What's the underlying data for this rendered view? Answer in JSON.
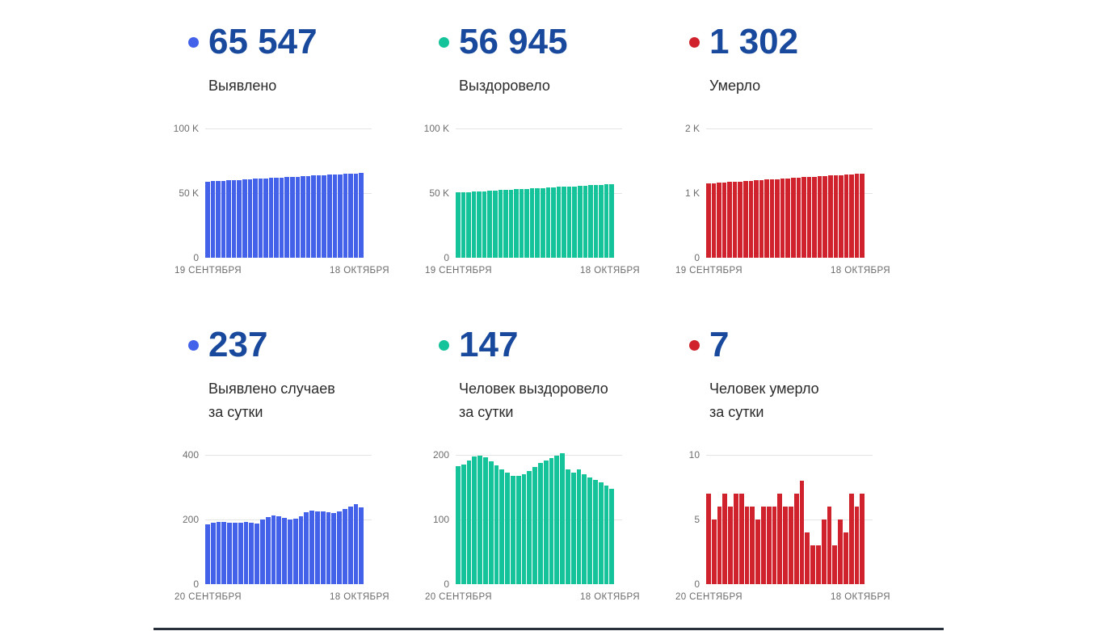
{
  "panels": [
    {
      "value": "65 547",
      "label_lines": [
        "Выявлено"
      ],
      "accent": "#4361e9"
    },
    {
      "value": "56 945",
      "label_lines": [
        "Выздоровело"
      ],
      "accent": "#15c39a"
    },
    {
      "value": "1 302",
      "label_lines": [
        "Умерло"
      ],
      "accent": "#d0222d"
    },
    {
      "value": "237",
      "label_lines": [
        "Выявлено случаев",
        "за сутки"
      ],
      "accent": "#4361e9"
    },
    {
      "value": "147",
      "label_lines": [
        "Человек выздоровело",
        "за сутки"
      ],
      "accent": "#15c39a"
    },
    {
      "value": "7",
      "label_lines": [
        "Человек умерло",
        "за сутки"
      ],
      "accent": "#d0222d"
    }
  ],
  "chart_data": [
    {
      "type": "bar",
      "title": "Выявлено",
      "color": "#4361e9",
      "ylabel": "",
      "xlabel": "",
      "ylim": [
        0,
        100
      ],
      "grid": true,
      "unit": "K",
      "yticks": [
        {
          "label": "100 K",
          "value": 100
        },
        {
          "label": "50 K",
          "value": 50
        },
        {
          "label": "0",
          "value": 0
        }
      ],
      "xticks": [
        "19 СЕНТЯБРЯ",
        "18 ОКТЯБРЯ"
      ],
      "values": [
        58.9,
        59.1,
        59.4,
        59.6,
        59.8,
        60.0,
        60.3,
        60.5,
        60.7,
        61.0,
        61.2,
        61.4,
        61.6,
        61.9,
        62.1,
        62.3,
        62.5,
        62.8,
        63.0,
        63.2,
        63.5,
        63.7,
        63.9,
        64.1,
        64.4,
        64.6,
        64.8,
        65.0,
        65.3,
        65.5
      ]
    },
    {
      "type": "bar",
      "title": "Выздоровело",
      "color": "#15c39a",
      "ylabel": "",
      "xlabel": "",
      "ylim": [
        0,
        100
      ],
      "grid": true,
      "unit": "K",
      "yticks": [
        {
          "label": "100 K",
          "value": 100
        },
        {
          "label": "50 K",
          "value": 50
        },
        {
          "label": "0",
          "value": 0
        }
      ],
      "xticks": [
        "19 СЕНТЯБРЯ",
        "18 ОКТЯБРЯ"
      ],
      "values": [
        50.4,
        50.6,
        50.9,
        51.1,
        51.3,
        51.5,
        51.8,
        52.0,
        52.2,
        52.4,
        52.7,
        52.9,
        53.1,
        53.3,
        53.6,
        53.8,
        54.0,
        54.2,
        54.4,
        54.7,
        54.9,
        55.1,
        55.3,
        55.6,
        55.8,
        56.0,
        56.2,
        56.5,
        56.7,
        56.9
      ]
    },
    {
      "type": "bar",
      "title": "Умерло",
      "color": "#d0222d",
      "ylabel": "",
      "xlabel": "",
      "ylim": [
        0,
        2000
      ],
      "grid": true,
      "unit": "",
      "yticks": [
        {
          "label": "2 K",
          "value": 2000
        },
        {
          "label": "1 K",
          "value": 1000
        },
        {
          "label": "0",
          "value": 0
        }
      ],
      "xticks": [
        "19 СЕНТЯБРЯ",
        "18 ОКТЯБРЯ"
      ],
      "values": [
        1148,
        1153,
        1159,
        1164,
        1169,
        1175,
        1180,
        1185,
        1191,
        1196,
        1201,
        1207,
        1212,
        1217,
        1223,
        1228,
        1233,
        1239,
        1244,
        1249,
        1255,
        1260,
        1265,
        1271,
        1276,
        1281,
        1287,
        1292,
        1297,
        1302
      ]
    },
    {
      "type": "bar",
      "title": "Выявлено случаев за сутки",
      "color": "#4361e9",
      "ylabel": "",
      "xlabel": "",
      "ylim": [
        0,
        400
      ],
      "grid": true,
      "unit": "",
      "yticks": [
        {
          "label": "400",
          "value": 400
        },
        {
          "label": "200",
          "value": 200
        },
        {
          "label": "0",
          "value": 0
        }
      ],
      "xticks": [
        "20 СЕНТЯБРЯ",
        "18 ОКТЯБРЯ"
      ],
      "values": [
        186,
        190,
        193,
        193,
        190,
        191,
        191,
        193,
        190,
        187,
        200,
        207,
        213,
        211,
        205,
        201,
        203,
        211,
        222,
        228,
        226,
        224,
        222,
        220,
        226,
        232,
        241,
        248,
        237
      ]
    },
    {
      "type": "bar",
      "title": "Человек выздоровело за сутки",
      "color": "#15c39a",
      "ylabel": "",
      "xlabel": "",
      "ylim": [
        0,
        200
      ],
      "grid": true,
      "unit": "",
      "yticks": [
        {
          "label": "200",
          "value": 200
        },
        {
          "label": "100",
          "value": 100
        },
        {
          "label": "0",
          "value": 0
        }
      ],
      "xticks": [
        "20 СЕНТЯБРЯ",
        "18 ОКТЯБРЯ"
      ],
      "values": [
        182,
        185,
        191,
        197,
        199,
        196,
        190,
        184,
        177,
        172,
        168,
        168,
        170,
        175,
        181,
        187,
        191,
        195,
        199,
        202,
        177,
        172,
        178,
        170,
        165,
        161,
        157,
        152,
        147
      ]
    },
    {
      "type": "bar",
      "title": "Человек умерло за сутки",
      "color": "#d0222d",
      "ylabel": "",
      "xlabel": "",
      "ylim": [
        0,
        10
      ],
      "grid": true,
      "unit": "",
      "yticks": [
        {
          "label": "10",
          "value": 10
        },
        {
          "label": "5",
          "value": 5
        },
        {
          "label": "0",
          "value": 0
        }
      ],
      "xticks": [
        "20 СЕНТЯБРЯ",
        "18 ОКТЯБРЯ"
      ],
      "values": [
        7,
        5,
        6,
        7,
        6,
        7,
        7,
        6,
        6,
        5,
        6,
        6,
        6,
        7,
        6,
        6,
        7,
        8,
        4,
        3,
        3,
        5,
        6,
        3,
        5,
        4,
        7,
        6,
        7
      ]
    }
  ],
  "footer": {
    "divider_color": "#28303c"
  }
}
